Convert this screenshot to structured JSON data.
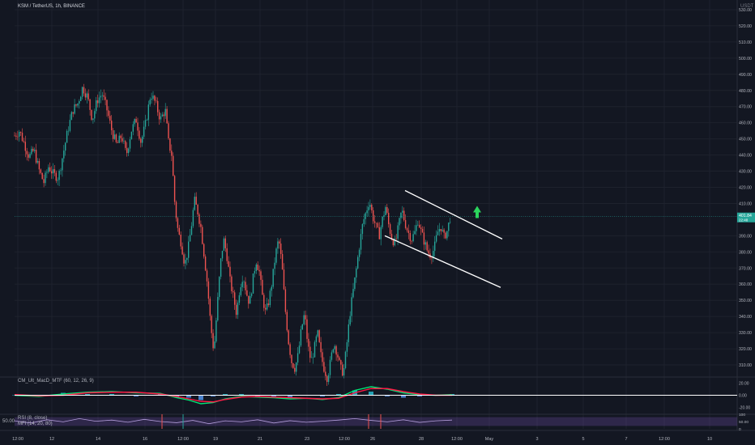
{
  "header": {
    "symbol": "KSM / TetherUS, 1h, BINANCE",
    "currency": "USDT"
  },
  "indicators": {
    "macd_label": "CM_Ult_MacD_MTF (60, 12, 26, 9)",
    "rsi_label": "RSI (8, close)",
    "mfi_label": "MFI (14, 20, 80)",
    "rsi_left_value": "50.00"
  },
  "colors": {
    "background": "#131722",
    "up": "#26a69a",
    "down": "#ef5350",
    "channel": "#ffffff",
    "arrow": "#2bd45c",
    "macd_fast": "#00e676",
    "macd_slow": "#ff1744",
    "rsi_fill": "#7e57c2"
  },
  "chart_data": [
    {
      "type": "candlestick",
      "title": "KSM / TetherUS, 1h, BINANCE",
      "x_ticks": [
        "12:00",
        "12",
        "14",
        "16",
        "12:00",
        "19",
        "21",
        "23",
        "12:00",
        "26",
        "28",
        "12:00",
        "May",
        "3",
        "5",
        "7",
        "12:00",
        "10"
      ],
      "y_ticks": [
        "530.00",
        "520.00",
        "510.00",
        "500.00",
        "490.00",
        "480.00",
        "470.00",
        "460.00",
        "450.00",
        "440.00",
        "430.00",
        "420.00",
        "410.00",
        "390.00",
        "380.00",
        "370.00",
        "360.00",
        "350.00",
        "340.00",
        "330.00",
        "320.00",
        "310.00"
      ],
      "ylim": [
        303,
        536
      ],
      "ylabel": "USDT",
      "last_price": "401.84",
      "last_price_sub": "22:48",
      "close_path": [
        [
          0,
          452
        ],
        [
          6,
          455
        ],
        [
          12,
          447
        ],
        [
          18,
          439
        ],
        [
          24,
          443
        ],
        [
          30,
          431
        ],
        [
          36,
          423
        ],
        [
          42,
          433
        ],
        [
          48,
          428
        ],
        [
          54,
          426
        ],
        [
          60,
          441
        ],
        [
          66,
          456
        ],
        [
          72,
          468
        ],
        [
          78,
          472
        ],
        [
          84,
          482
        ],
        [
          90,
          476
        ],
        [
          96,
          462
        ],
        [
          102,
          474
        ],
        [
          108,
          478
        ],
        [
          114,
          468
        ],
        [
          120,
          455
        ],
        [
          126,
          446
        ],
        [
          132,
          452
        ],
        [
          138,
          440
        ],
        [
          144,
          455
        ],
        [
          150,
          462
        ],
        [
          156,
          448
        ],
        [
          162,
          460
        ],
        [
          168,
          478
        ],
        [
          174,
          472
        ],
        [
          180,
          462
        ],
        [
          186,
          468
        ],
        [
          190,
          448
        ],
        [
          194,
          440
        ],
        [
          198,
          408
        ],
        [
          202,
          392
        ],
        [
          206,
          385
        ],
        [
          210,
          372
        ],
        [
          214,
          381
        ],
        [
          218,
          395
        ],
        [
          222,
          412
        ],
        [
          226,
          405
        ],
        [
          230,
          395
        ],
        [
          234,
          378
        ],
        [
          238,
          360
        ],
        [
          242,
          335
        ],
        [
          246,
          318
        ],
        [
          250,
          345
        ],
        [
          254,
          372
        ],
        [
          258,
          388
        ],
        [
          262,
          378
        ],
        [
          266,
          362
        ],
        [
          270,
          352
        ],
        [
          274,
          342
        ],
        [
          278,
          358
        ],
        [
          282,
          366
        ],
        [
          286,
          355
        ],
        [
          290,
          348
        ],
        [
          294,
          362
        ],
        [
          298,
          375
        ],
        [
          302,
          368
        ],
        [
          306,
          352
        ],
        [
          310,
          342
        ],
        [
          314,
          350
        ],
        [
          318,
          362
        ],
        [
          322,
          378
        ],
        [
          326,
          388
        ],
        [
          330,
          372
        ],
        [
          334,
          345
        ],
        [
          338,
          325
        ],
        [
          342,
          312
        ],
        [
          346,
          308
        ],
        [
          350,
          316
        ],
        [
          354,
          332
        ],
        [
          358,
          342
        ],
        [
          362,
          322
        ],
        [
          366,
          312
        ],
        [
          370,
          320
        ],
        [
          374,
          330
        ],
        [
          378,
          316
        ],
        [
          382,
          308
        ],
        [
          386,
          302
        ],
        [
          390,
          312
        ],
        [
          394,
          324
        ],
        [
          398,
          318
        ],
        [
          402,
          308
        ],
        [
          406,
          305
        ],
        [
          410,
          322
        ],
        [
          414,
          342
        ],
        [
          418,
          356
        ],
        [
          422,
          370
        ],
        [
          426,
          385
        ],
        [
          430,
          398
        ],
        [
          434,
          405
        ],
        [
          438,
          412
        ],
        [
          442,
          402
        ],
        [
          446,
          396
        ],
        [
          450,
          390
        ],
        [
          454,
          400
        ],
        [
          458,
          408
        ],
        [
          462,
          396
        ],
        [
          466,
          388
        ],
        [
          470,
          385
        ],
        [
          474,
          396
        ],
        [
          478,
          406
        ],
        [
          482,
          398
        ],
        [
          486,
          392
        ],
        [
          490,
          388
        ],
        [
          494,
          392
        ],
        [
          498,
          400
        ],
        [
          502,
          392
        ],
        [
          506,
          386
        ],
        [
          510,
          380
        ],
        [
          514,
          378
        ],
        [
          518,
          382
        ],
        [
          522,
          392
        ],
        [
          526,
          396
        ],
        [
          530,
          389
        ],
        [
          534,
          393
        ],
        [
          538,
          401.84
        ]
      ],
      "channel_upper": [
        [
          427,
          418
        ],
        [
          565,
          388
        ]
      ],
      "channel_lower": [
        [
          417,
          390
        ],
        [
          561,
          358
        ]
      ],
      "breakout_arrow_at": [
        534,
        405
      ]
    },
    {
      "type": "line",
      "title": "CM_Ult_MacD_MTF (60, 12, 26, 9)",
      "y_ticks": [
        "20.00",
        "0.00",
        "-20.00"
      ],
      "ylim": [
        -30,
        30
      ],
      "x": [
        0,
        30,
        60,
        90,
        120,
        150,
        180,
        200,
        215,
        230,
        245,
        260,
        280,
        300,
        320,
        340,
        360,
        380,
        400,
        420,
        440,
        460,
        480,
        500,
        520,
        540
      ],
      "series": [
        {
          "name": "fast",
          "values": [
            0,
            -2,
            2,
            5,
            6,
            4,
            3,
            -4,
            -8,
            -14,
            -12,
            -6,
            -2,
            -3,
            -4,
            -6,
            -5,
            -7,
            -4,
            8,
            14,
            10,
            4,
            1,
            0,
            1
          ]
        },
        {
          "name": "slow",
          "values": [
            1,
            -1,
            0,
            4,
            5,
            5,
            2,
            -2,
            -6,
            -10,
            -11,
            -7,
            -3,
            -2,
            -3,
            -4,
            -5,
            -6,
            -5,
            4,
            11,
            11,
            6,
            2,
            0,
            0
          ]
        }
      ],
      "histogram": [
        0,
        -1,
        2,
        1,
        1,
        -1,
        1,
        -2,
        -2,
        -4,
        -1,
        1,
        1,
        -1,
        -1,
        -2,
        0,
        -1,
        1,
        4,
        3,
        -1,
        -2,
        -1,
        0,
        1
      ]
    },
    {
      "type": "area",
      "title": "RSI (8, close)",
      "y_ticks": [
        "100",
        "50.00",
        "0"
      ],
      "ylim": [
        0,
        100
      ],
      "x": [
        0,
        20,
        40,
        60,
        80,
        100,
        120,
        140,
        160,
        180,
        200,
        220,
        240,
        260,
        280,
        300,
        320,
        340,
        360,
        380,
        400,
        420,
        440,
        460,
        480,
        500,
        520,
        540
      ],
      "values": [
        55,
        40,
        62,
        48,
        70,
        52,
        60,
        45,
        65,
        50,
        42,
        58,
        35,
        55,
        48,
        62,
        40,
        56,
        45,
        52,
        60,
        70,
        58,
        48,
        62,
        44,
        55,
        60
      ]
    }
  ]
}
